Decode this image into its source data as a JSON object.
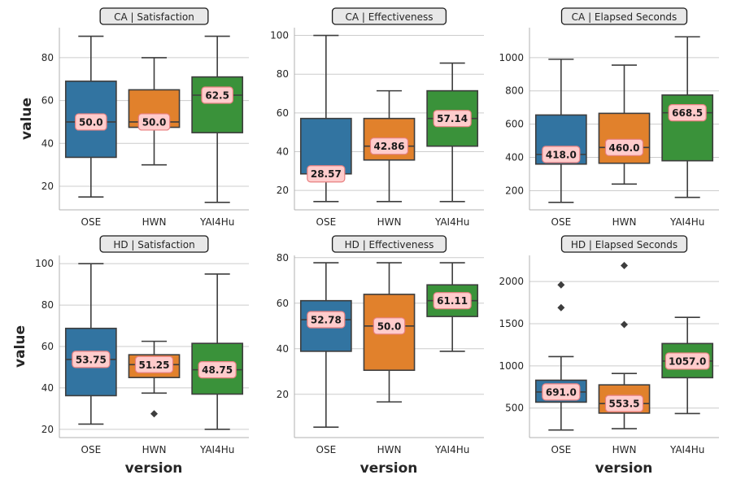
{
  "colors": {
    "OSE": "#3274a1",
    "HWN": "#e1812c",
    "YAI4Hu": "#3a923a",
    "grid": "#cccccc",
    "line": "#3d3d3d",
    "label_fill": "#ffcccc",
    "label_edge": "#e88080",
    "title_fill": "#e8e8e8"
  },
  "figure": {
    "xlabel": "version",
    "ylabel": "value"
  },
  "chart_data": [
    {
      "type": "box",
      "title": "CA | Satisfaction",
      "categories": [
        "OSE",
        "HWN",
        "YAI4Hu"
      ],
      "ylim": [
        9,
        94
      ],
      "yticks": [
        20,
        40,
        60,
        80
      ],
      "grid": true,
      "boxes": [
        {
          "whisker_low": 15,
          "q1": 33.5,
          "median": 50.0,
          "q3": 69,
          "whisker_high": 90,
          "outliers": [],
          "label": "50.0"
        },
        {
          "whisker_low": 30,
          "q1": 47.5,
          "median": 50.0,
          "q3": 65,
          "whisker_high": 80,
          "outliers": [],
          "label": "50.0"
        },
        {
          "whisker_low": 12.5,
          "q1": 45,
          "median": 62.5,
          "q3": 71,
          "whisker_high": 90,
          "outliers": [],
          "label": "62.5"
        }
      ]
    },
    {
      "type": "box",
      "title": "CA | Effectiveness",
      "categories": [
        "OSE",
        "HWN",
        "YAI4Hu"
      ],
      "ylim": [
        10,
        104
      ],
      "yticks": [
        20,
        40,
        60,
        80,
        100
      ],
      "grid": true,
      "boxes": [
        {
          "whisker_low": 14.29,
          "q1": 28.57,
          "median": 28.57,
          "q3": 57.14,
          "whisker_high": 100,
          "outliers": [],
          "label": "28.57"
        },
        {
          "whisker_low": 14.29,
          "q1": 35.71,
          "median": 42.86,
          "q3": 57.14,
          "whisker_high": 71.43,
          "outliers": [],
          "label": "42.86"
        },
        {
          "whisker_low": 14.29,
          "q1": 42.86,
          "median": 57.14,
          "q3": 71.43,
          "whisker_high": 85.71,
          "outliers": [],
          "label": "57.14"
        }
      ]
    },
    {
      "type": "box",
      "title": "CA | Elapsed Seconds",
      "categories": [
        "OSE",
        "HWN",
        "YAI4Hu"
      ],
      "ylim": [
        85,
        1180
      ],
      "yticks": [
        200,
        400,
        600,
        800,
        1000
      ],
      "grid": true,
      "boxes": [
        {
          "whisker_low": 130,
          "q1": 360,
          "median": 418.0,
          "q3": 655,
          "whisker_high": 990,
          "outliers": [],
          "label": "418.0"
        },
        {
          "whisker_low": 240,
          "q1": 365,
          "median": 460.0,
          "q3": 665,
          "whisker_high": 955,
          "outliers": [],
          "label": "460.0"
        },
        {
          "whisker_low": 160,
          "q1": 380,
          "median": 668.5,
          "q3": 775,
          "whisker_high": 1125,
          "outliers": [],
          "label": "668.5"
        }
      ]
    },
    {
      "type": "box",
      "title": "HD | Satisfaction",
      "categories": [
        "OSE",
        "HWN",
        "YAI4Hu"
      ],
      "ylim": [
        16,
        104
      ],
      "yticks": [
        20,
        40,
        60,
        80,
        100
      ],
      "grid": true,
      "boxes": [
        {
          "whisker_low": 22.5,
          "q1": 36.25,
          "median": 53.75,
          "q3": 68.75,
          "whisker_high": 100,
          "outliers": [],
          "label": "53.75"
        },
        {
          "whisker_low": 37.5,
          "q1": 45,
          "median": 51.25,
          "q3": 56,
          "whisker_high": 62.5,
          "outliers": [
            27.5
          ],
          "label": "51.25"
        },
        {
          "whisker_low": 20,
          "q1": 37,
          "median": 48.75,
          "q3": 61.5,
          "whisker_high": 95,
          "outliers": [],
          "label": "48.75"
        }
      ]
    },
    {
      "type": "box",
      "title": "HD | Effectiveness",
      "categories": [
        "OSE",
        "HWN",
        "YAI4Hu"
      ],
      "ylim": [
        1,
        81
      ],
      "yticks": [
        20,
        40,
        60,
        80
      ],
      "grid": true,
      "boxes": [
        {
          "whisker_low": 5.56,
          "q1": 38.89,
          "median": 52.78,
          "q3": 61.11,
          "whisker_high": 77.78,
          "outliers": [],
          "label": "52.78"
        },
        {
          "whisker_low": 16.67,
          "q1": 30.56,
          "median": 50.0,
          "q3": 63.89,
          "whisker_high": 77.78,
          "outliers": [],
          "label": "50.0"
        },
        {
          "whisker_low": 38.89,
          "q1": 54.17,
          "median": 61.11,
          "q3": 68.06,
          "whisker_high": 77.78,
          "outliers": [],
          "label": "61.11"
        }
      ]
    },
    {
      "type": "box",
      "title": "HD | Elapsed Seconds",
      "categories": [
        "OSE",
        "HWN",
        "YAI4Hu"
      ],
      "ylim": [
        150,
        2310
      ],
      "yticks": [
        500,
        1000,
        1500,
        2000
      ],
      "grid": true,
      "boxes": [
        {
          "whisker_low": 240,
          "q1": 570,
          "median": 691.0,
          "q3": 830,
          "whisker_high": 1110,
          "outliers": [
            1690,
            1960
          ],
          "label": "691.0"
        },
        {
          "whisker_low": 255,
          "q1": 440,
          "median": 553.5,
          "q3": 775,
          "whisker_high": 910,
          "outliers": [
            1490,
            2190
          ],
          "label": "553.5"
        },
        {
          "whisker_low": 435,
          "q1": 860,
          "median": 1057.0,
          "q3": 1265,
          "whisker_high": 1575,
          "outliers": [],
          "label": "1057.0"
        }
      ]
    }
  ]
}
